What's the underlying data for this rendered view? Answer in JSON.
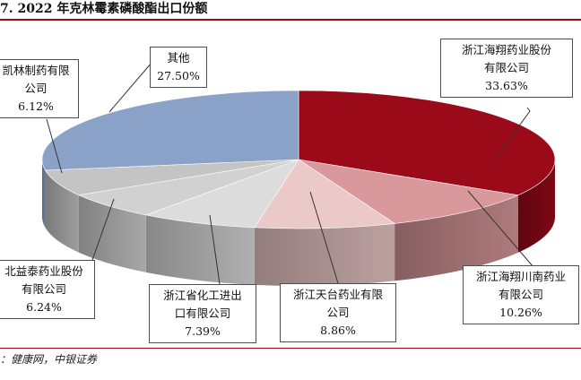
{
  "title": "7. 2022 年克林霉素磷酸酯出口份额",
  "source": "：健康网，中银证券",
  "chart_data": {
    "type": "pie",
    "categories": [
      "浙江海翔药业股份有限公司",
      "浙江海翔川南药业有限公司",
      "浙江天台药业有限公司",
      "浙江省化工进出口有限公司",
      "北益泰药业股份有限公司",
      "凯林制药有限公司",
      "其他"
    ],
    "values": [
      33.63,
      10.26,
      8.86,
      7.39,
      6.24,
      6.12,
      27.5
    ],
    "value_labels": [
      "33.63%",
      "10.26%",
      "8.86%",
      "7.39%",
      "6.24%",
      "6.12%",
      "27.50%"
    ],
    "label_lines": [
      [
        "浙江海翔药业股份",
        "有限公司"
      ],
      [
        "浙江海翔川南药业",
        "有限公司"
      ],
      [
        "浙江天台药业有限",
        "公司"
      ],
      [
        "浙江省化工进出",
        "口有限公司"
      ],
      [
        "北益泰药业股份",
        "有限公司"
      ],
      [
        "凯林制药有限",
        "公司"
      ],
      [
        "其他"
      ]
    ],
    "colors": [
      "#9b0a19",
      "#d9999c",
      "#ecc9c9",
      "#dcdcdc",
      "#d1d1d1",
      "#c4c4c4",
      "#8aa2c8"
    ]
  }
}
